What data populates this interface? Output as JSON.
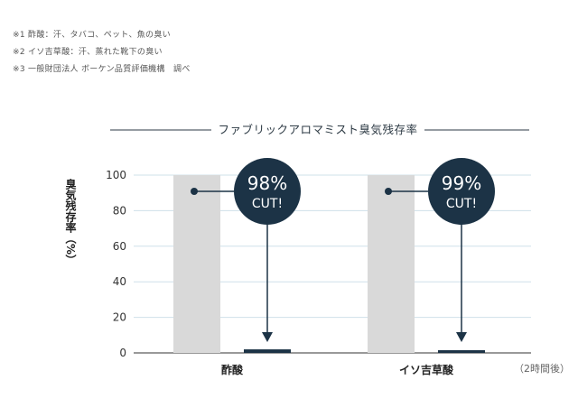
{
  "notes": [
    "※1 酢酸：汗、タバコ、ペット、魚の臭い",
    "※2 イソ吉草酸：汗、蒸れた靴下の臭い",
    "※3 一般財団法人 ボーケン品質評価機構　調べ"
  ],
  "chart_data": {
    "type": "bar",
    "title": "ファブリックアロマミスト臭気残存率",
    "ylabel": "臭気残存率（%）",
    "xlabel": "",
    "time_note": "（2時間後）",
    "ylim": [
      0,
      100
    ],
    "yticks": [
      0,
      20,
      40,
      60,
      80,
      100
    ],
    "grid": true,
    "categories": [
      "酢酸",
      "イソ吉草酸"
    ],
    "series": [
      {
        "values": [
          100,
          100
        ],
        "color": "#d9d9d9"
      },
      {
        "values": [
          2,
          1
        ],
        "color": "#1c3346"
      }
    ],
    "annotations": [
      {
        "category": "酢酸",
        "percent": "98%",
        "text": "CUT!"
      },
      {
        "category": "イソ吉草酸",
        "percent": "99%",
        "text": "CUT!"
      }
    ],
    "colors": {
      "accent": "#1c3346",
      "before": "#d9d9d9",
      "grid": "#cfe0ea"
    }
  }
}
